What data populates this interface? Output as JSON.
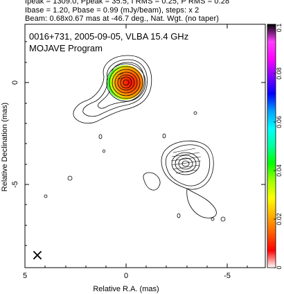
{
  "header": {
    "line1": "Ipeak = 1309.0, Ppeak = 35.5, I RMS = 0.25, P RMS = 0.28",
    "line2": "Ibase = 1.20, Pbase = 0.99 (mJy/beam), steps: x 2",
    "line3": "Beam: 0.68x0.67 mas at -46.7 deg., Nat. Wgt. (no taper)"
  },
  "plot": {
    "title_line1": "0016+731, 2005-09-05, VLBA 15.4 GHz",
    "title_line2": "MOJAVE Program",
    "xlabel": "Relative R.A. (mas)",
    "ylabel": "Relative Declination (mas)",
    "xticks": [
      "5",
      "0",
      "-5"
    ],
    "yticks": [
      "0",
      "-5"
    ],
    "beam_marker": "×"
  },
  "colorbar": {
    "ticks": [
      "0",
      "0.02",
      "0.04",
      "0.06",
      "0.08",
      "0.1"
    ],
    "colors": [
      "#ffffff",
      "#ff0000",
      "#ff6000",
      "#ffb000",
      "#ffff00",
      "#a0ff00",
      "#00ff00",
      "#00ffa0",
      "#00ffff",
      "#00a0ff",
      "#0000ff",
      "#8000ff",
      "#ff00ff",
      "#ff40ff",
      "#000000"
    ]
  }
}
